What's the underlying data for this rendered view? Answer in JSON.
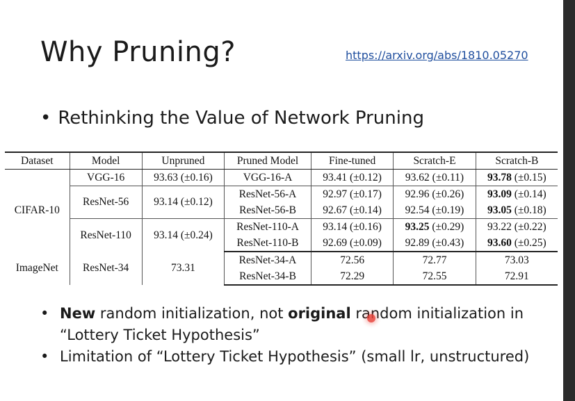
{
  "slide": {
    "title": "Why Pruning?",
    "link": "https://arxiv.org/abs/1810.05270",
    "subtitle": "Rethinking the Value of Network Pruning"
  },
  "table": {
    "headers": [
      "Dataset",
      "Model",
      "Unpruned",
      "Pruned Model",
      "Fine-tuned",
      "Scratch-E",
      "Scratch-B"
    ],
    "cifar": {
      "dataset": "CIFAR-10",
      "vgg16": {
        "model": "VGG-16",
        "unpruned": "93.63 (±0.16)",
        "rows": [
          {
            "pruned": "VGG-16-A",
            "fine": "93.41 (±0.12)",
            "se": "93.62 (±0.11)",
            "sb_bold": "93.78",
            "sb_rest": " (±0.15)"
          }
        ]
      },
      "resnet56": {
        "model": "ResNet-56",
        "unpruned": "93.14 (±0.12)",
        "rows": [
          {
            "pruned": "ResNet-56-A",
            "fine": "92.97 (±0.17)",
            "se": "92.96 (±0.26)",
            "sb_bold": "93.09",
            "sb_rest": " (±0.14)"
          },
          {
            "pruned": "ResNet-56-B",
            "fine": "92.67 (±0.14)",
            "se": "92.54 (±0.19)",
            "sb_bold": "93.05",
            "sb_rest": " (±0.18)"
          }
        ]
      },
      "resnet110": {
        "model": "ResNet-110",
        "unpruned": "93.14 (±0.24)",
        "rows": [
          {
            "pruned": "ResNet-110-A",
            "fine": "93.14 (±0.16)",
            "se_bold": "93.25",
            "se_rest": " (±0.29)",
            "sb": "93.22 (±0.22)"
          },
          {
            "pruned": "ResNet-110-B",
            "fine": "92.69 (±0.09)",
            "se": "92.89 (±0.43)",
            "sb_bold": "93.60",
            "sb_rest": " (±0.25)"
          }
        ]
      }
    },
    "imagenet": {
      "dataset": "ImageNet",
      "model": "ResNet-34",
      "unpruned": "73.31",
      "rows": [
        {
          "pruned": "ResNet-34-A",
          "fine": "72.56",
          "se": "72.77",
          "sb": "73.03"
        },
        {
          "pruned": "ResNet-34-B",
          "fine": "72.29",
          "se": "72.55",
          "sb": "72.91"
        }
      ]
    }
  },
  "bullets": {
    "b1": {
      "bold1": "New",
      "text1": " random initialization, not ",
      "bold2": "original",
      "text2": " random initialization in “Lottery Ticket Hypothesis”"
    },
    "b2": {
      "text": "Limitation of “Lottery Ticket Hypothesis” (small lr, unstructured)"
    }
  },
  "colors": {
    "link": "#1f4e9e",
    "pointer": "#e8433a"
  }
}
